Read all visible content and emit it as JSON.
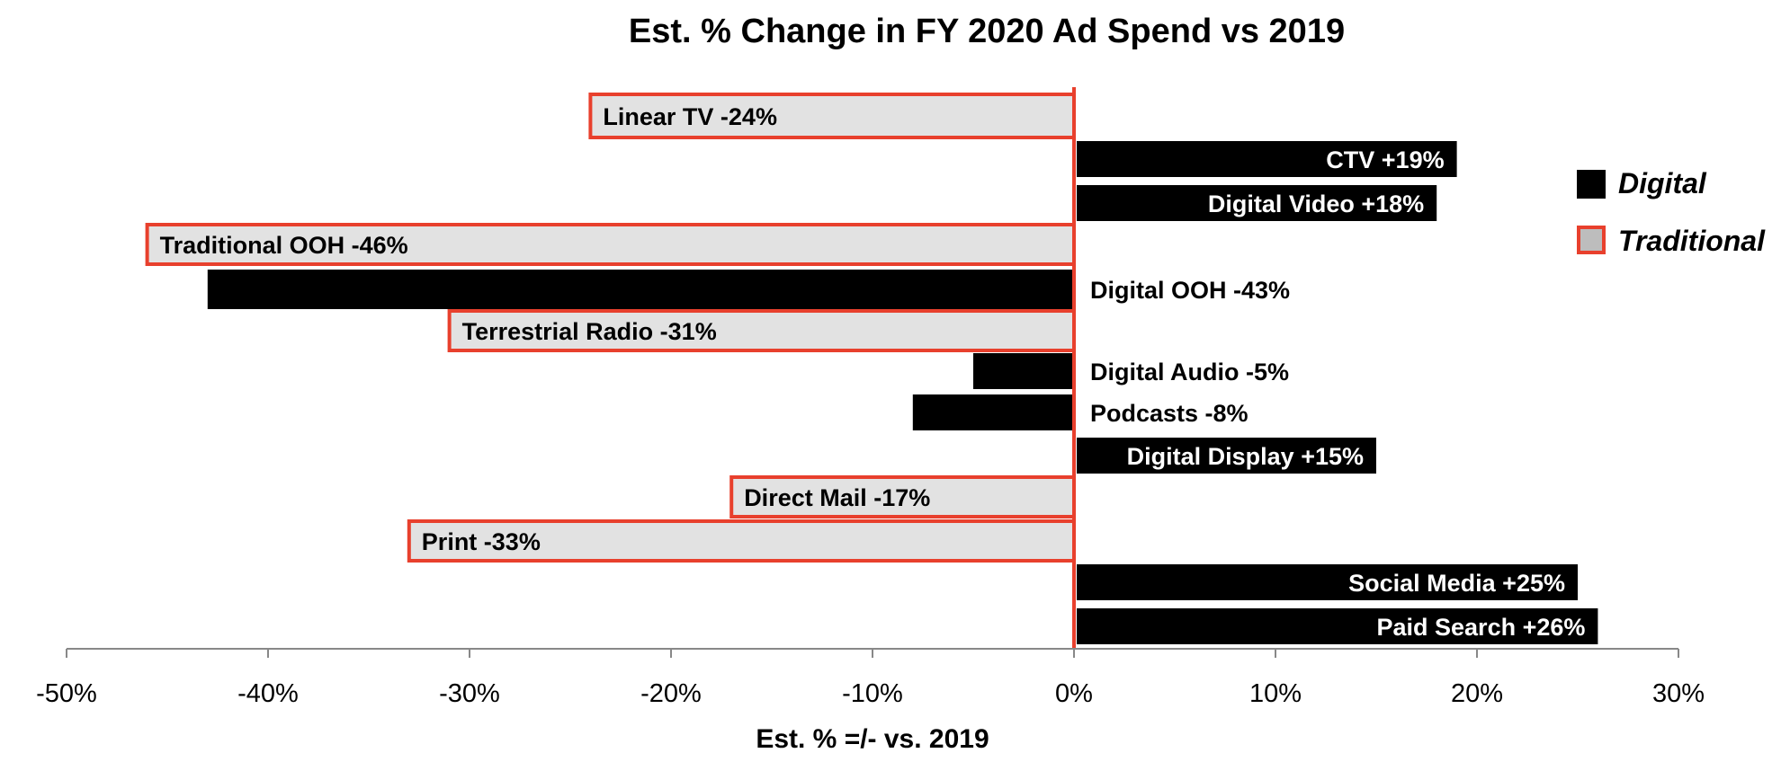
{
  "chart_data": {
    "type": "bar",
    "orientation": "horizontal",
    "title": "Est. % Change in FY 2020 Ad Spend vs 2019",
    "xlabel": "Est. % =/- vs. 2019",
    "ylabel": "",
    "xlim": [
      -50,
      30
    ],
    "x_ticks": [
      -50,
      -40,
      -30,
      -20,
      -10,
      0,
      10,
      20,
      30
    ],
    "x_tick_labels": [
      "-50%",
      "-40%",
      "-30%",
      "-20%",
      "-10%",
      "0%",
      "10%",
      "20%",
      "30%"
    ],
    "grid": false,
    "legend": {
      "placement": "right",
      "entries": [
        {
          "name": "Digital",
          "type": "digital"
        },
        {
          "name": "Traditional",
          "type": "traditional"
        }
      ]
    },
    "bars": [
      {
        "category": "Linear TV",
        "value": -24,
        "type": "traditional",
        "label": "Linear TV -24%"
      },
      {
        "category": "CTV",
        "value": 19,
        "type": "digital",
        "label": "CTV +19%"
      },
      {
        "category": "Digital Video",
        "value": 18,
        "type": "digital",
        "label": "Digital Video +18%"
      },
      {
        "category": "Traditional OOH",
        "value": -46,
        "type": "traditional",
        "label": "Traditional OOH -46%"
      },
      {
        "category": "Digital OOH",
        "value": -43,
        "type": "digital",
        "label": "Digital OOH -43%"
      },
      {
        "category": "Terrestrial Radio",
        "value": -31,
        "type": "traditional",
        "label": "Terrestrial Radio -31%"
      },
      {
        "category": "Digital Audio",
        "value": -5,
        "type": "digital",
        "label": "Digital Audio -5%"
      },
      {
        "category": "Podcasts",
        "value": -8,
        "type": "digital",
        "label": "Podcasts -8%"
      },
      {
        "category": "Digital Display",
        "value": 15,
        "type": "digital",
        "label": "Digital Display +15%"
      },
      {
        "category": "Direct Mail",
        "value": -17,
        "type": "traditional",
        "label": "Direct Mail -17%"
      },
      {
        "category": "Print",
        "value": -33,
        "type": "traditional",
        "label": "Print -33%"
      },
      {
        "category": "Social Media",
        "value": 25,
        "type": "digital",
        "label": "Social Media +25%"
      },
      {
        "category": "Paid Search",
        "value": 26,
        "type": "digital",
        "label": "Paid Search +26%"
      }
    ],
    "colors": {
      "digital_fill": "#000000",
      "traditional_fill": "#e2e2e2",
      "traditional_stroke": "#e8402d",
      "zero_line": "#e8402d",
      "axis": "#888888",
      "digital_label_inside": "#ffffff",
      "label_text": "#000000"
    }
  }
}
